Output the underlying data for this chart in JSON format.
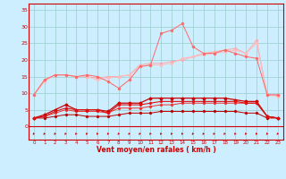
{
  "x": [
    0,
    1,
    2,
    3,
    4,
    5,
    6,
    7,
    8,
    9,
    10,
    11,
    12,
    13,
    14,
    15,
    16,
    17,
    18,
    19,
    20,
    21,
    22,
    23
  ],
  "line1": [
    9.5,
    14,
    15.5,
    15.5,
    15,
    15.5,
    15,
    13.5,
    11.5,
    14,
    18,
    18.5,
    28,
    29,
    31,
    24,
    22,
    22,
    23,
    22,
    21,
    20.5,
    9.5,
    9.5
  ],
  "line2": [
    9.5,
    14,
    15.5,
    15.5,
    15,
    15,
    14.5,
    15,
    15,
    15.5,
    18.5,
    19,
    19,
    19.5,
    20,
    21,
    22,
    22.5,
    23,
    23.5,
    22,
    26,
    9.5,
    9.5
  ],
  "line3": [
    9.5,
    13.5,
    15.5,
    15.5,
    15,
    15,
    14,
    14.5,
    15,
    15.5,
    18,
    18.5,
    18.5,
    19,
    20.5,
    21,
    21.5,
    22,
    22.5,
    23,
    22,
    25,
    9.5,
    9
  ],
  "line4": [
    2.5,
    3.5,
    5,
    6.5,
    5,
    5,
    5,
    4.5,
    7,
    7,
    7,
    8.5,
    8.5,
    8.5,
    8.5,
    8.5,
    8.5,
    8.5,
    8.5,
    8,
    7.5,
    7.5,
    3,
    2.5
  ],
  "line5": [
    2.5,
    3,
    4.5,
    5.5,
    5,
    5,
    5,
    4,
    6.5,
    6.5,
    6.5,
    7,
    7.5,
    7.5,
    7.5,
    7.5,
    7.5,
    7.5,
    7.5,
    7.5,
    7,
    7,
    3,
    2.5
  ],
  "line6": [
    2.5,
    3,
    4,
    5,
    4.5,
    4.5,
    4.5,
    4,
    5.5,
    5.5,
    5.5,
    6,
    6.5,
    6.5,
    7,
    7,
    7,
    7,
    7,
    7,
    7,
    7,
    3,
    2.5
  ],
  "line7": [
    2.5,
    2.5,
    3,
    3.5,
    3.5,
    3,
    3,
    3,
    3.5,
    4,
    4,
    4,
    4.5,
    4.5,
    4.5,
    4.5,
    4.5,
    4.5,
    4.5,
    4.5,
    4,
    4,
    2.5,
    2.5
  ],
  "bg_color": "#cceeff",
  "grid_color": "#99cccc",
  "line1_color": "#ff6666",
  "line2_color": "#ffaaaa",
  "line3_color": "#ffbbbb",
  "line4_color": "#cc0000",
  "line5_color": "#dd1111",
  "line6_color": "#ee3333",
  "line7_color": "#bb0000",
  "arrow_color": "#cc0000",
  "xlabel": "Vent moyen/en rafales ( km/h )",
  "xlabel_color": "#cc0000",
  "tick_color": "#cc0000",
  "spine_color": "#cc0000",
  "ylim": [
    -4,
    37
  ],
  "xlim": [
    -0.5,
    23.5
  ],
  "yticks": [
    0,
    5,
    10,
    15,
    20,
    25,
    30,
    35
  ],
  "xticks": [
    0,
    1,
    2,
    3,
    4,
    5,
    6,
    7,
    8,
    9,
    10,
    11,
    12,
    13,
    14,
    15,
    16,
    17,
    18,
    19,
    20,
    21,
    22,
    23
  ]
}
